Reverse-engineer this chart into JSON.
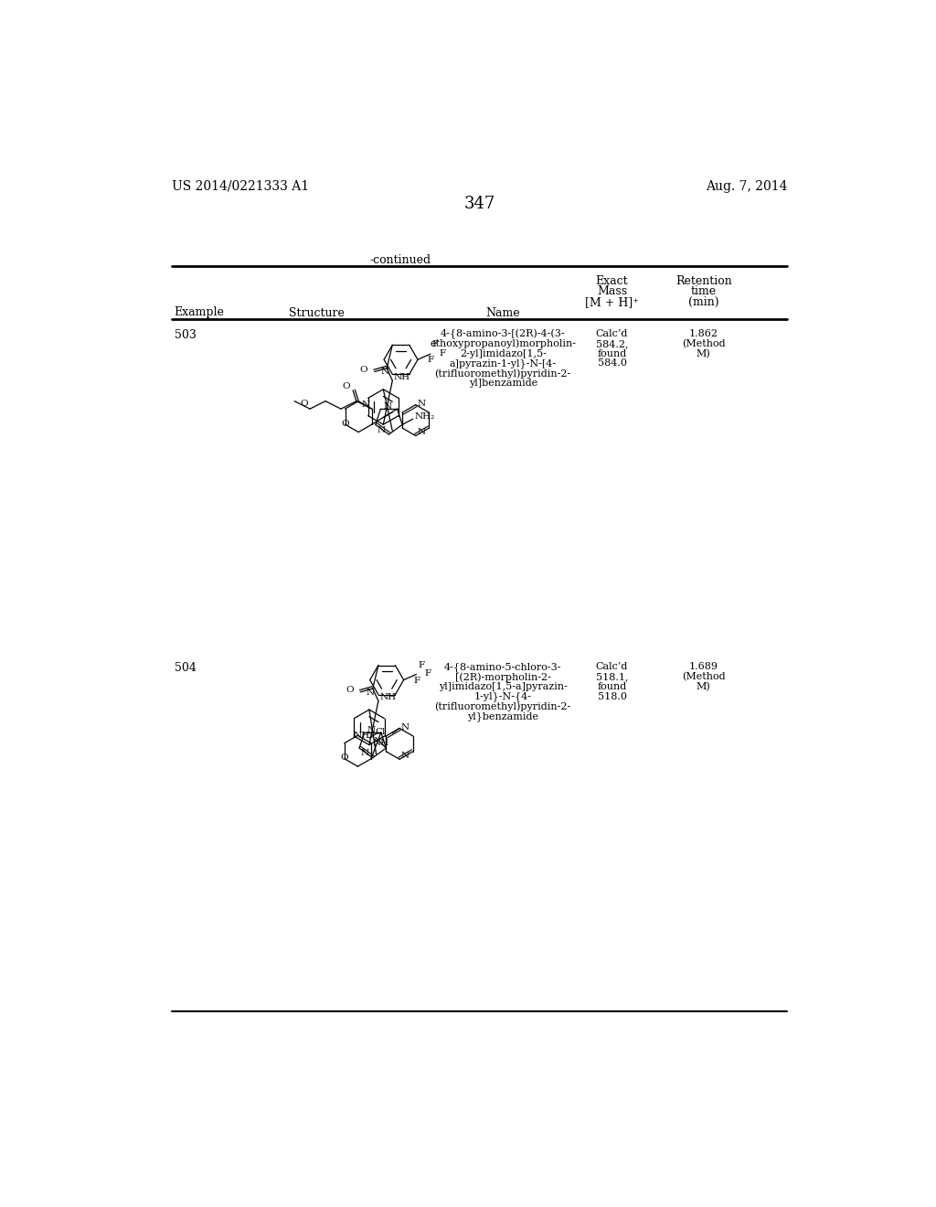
{
  "patent_number": "US 2014/0221333 A1",
  "date": "Aug. 7, 2014",
  "page_number": "347",
  "continued_label": "-continued",
  "col_headers": {
    "example": "Example",
    "structure": "Structure",
    "name": "Name",
    "exact_mass_line1": "Exact",
    "exact_mass_line2": "Mass",
    "exact_mass_line3": "[M + H]⁺",
    "retention_line1": "Retention",
    "retention_line2": "time",
    "retention_line3": "(min)"
  },
  "rows": [
    {
      "example": "503",
      "name_lines": [
        "4-{8-amino-3-[(2R)-4-(3-",
        "ethoxypropanoyl)morpholin-",
        "2-yl]imidazo[1,5-",
        "a]pyrazin-1-yl}-N-[4-",
        "(trifluoromethyl)pyridin-2-",
        "yl]benzamide"
      ],
      "exact_mass_lines": [
        "Calc’d",
        "584.2,",
        "found",
        "584.0"
      ],
      "retention_lines": [
        "1.862",
        "(Method",
        "M)"
      ]
    },
    {
      "example": "504",
      "name_lines": [
        "4-{8-amino-5-chloro-3-",
        "[(2R)-morpholin-2-",
        "yl]imidazo[1,5-a]pyrazin-",
        "1-yl}-N-{4-",
        "(trifluoromethyl)pyridin-2-",
        "yl}benzamide"
      ],
      "exact_mass_lines": [
        "Calc’d",
        "518.1,",
        "found",
        "518.0"
      ],
      "retention_lines": [
        "1.689",
        "(Method",
        "M)"
      ]
    }
  ],
  "background_color": "#ffffff",
  "text_color": "#000000",
  "font_family": "DejaVu Serif",
  "font_size_header": 9,
  "font_size_body": 9,
  "font_size_page": 11,
  "font_size_patent": 10
}
